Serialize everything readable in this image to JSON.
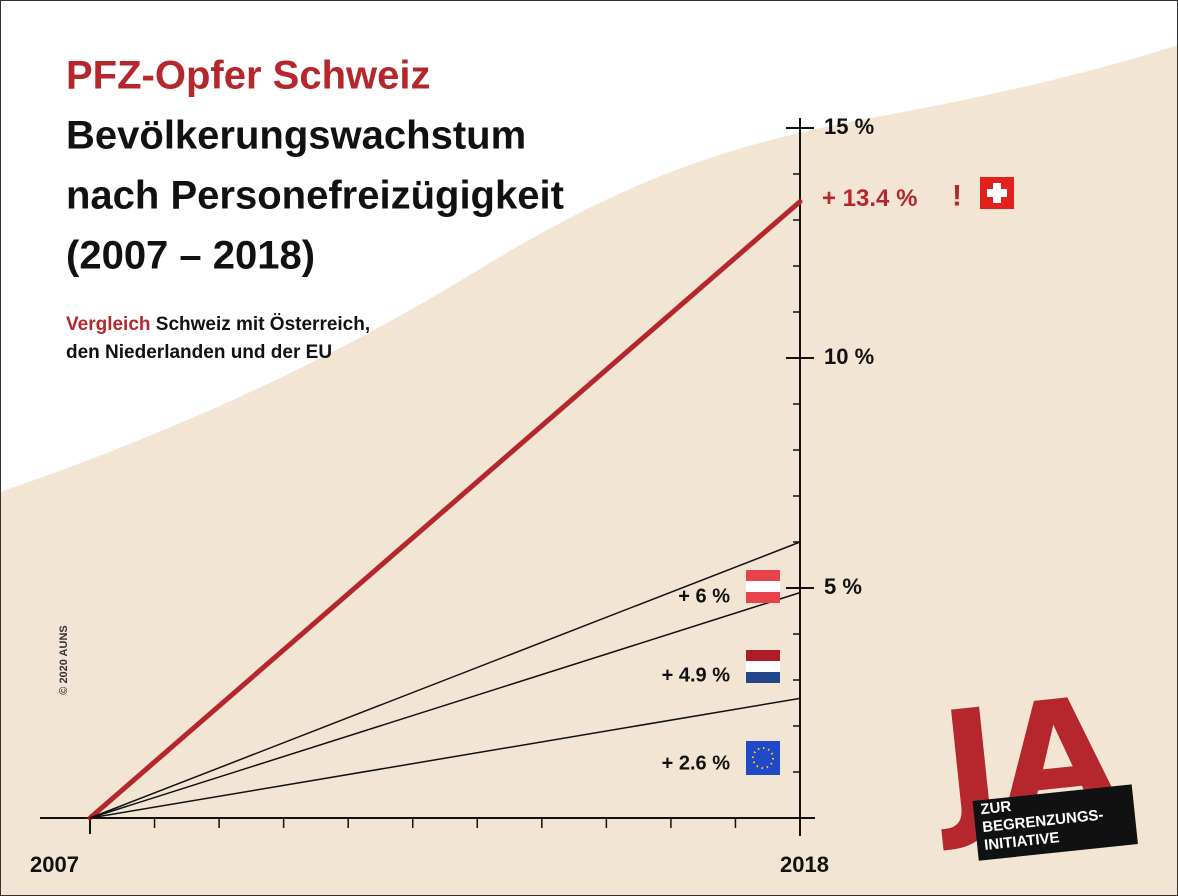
{
  "chart_data": {
    "type": "line",
    "title": "PFZ-Opfer Schweiz",
    "subtitle": [
      "Bevölkerungswachstum",
      "nach Personefreizügigkeit",
      "(2007 – 2018)"
    ],
    "description": {
      "highlight": "Vergleich",
      "lines": [
        "Schweiz mit Österreich,",
        "den Niederlanden und der EU"
      ]
    },
    "x": [
      2007,
      2018
    ],
    "xlim": [
      2007,
      2018
    ],
    "xticks": [
      2007,
      2018
    ],
    "xminor_ticks": [
      2008,
      2009,
      2010,
      2011,
      2012,
      2013,
      2014,
      2015,
      2016,
      2017
    ],
    "ylim": [
      0,
      15
    ],
    "yticks": [
      {
        "value": 5,
        "label": "5 %"
      },
      {
        "value": 10,
        "label": "10 %"
      },
      {
        "value": 15,
        "label": "15 %"
      }
    ],
    "yminor_ticks": [
      1,
      2,
      3,
      4,
      6,
      7,
      8,
      9,
      11,
      12,
      13,
      14
    ],
    "series": [
      {
        "color": "#b5272d",
        "values": [
          0,
          13.4
        ],
        "value_labels": [
          null,
          "+ 13.4 %"
        ],
        "emphasis": "!"
      },
      {
        "color": "#111111",
        "values": [
          0,
          6
        ],
        "value_labels": [
          null,
          "+ 6 %"
        ]
      },
      {
        "color": "#111111",
        "values": [
          0,
          4.9
        ],
        "value_labels": [
          null,
          "+ 4.9 %"
        ]
      },
      {
        "color": "#111111",
        "values": [
          0,
          2.6
        ],
        "value_labels": [
          null,
          "+ 2.6 %"
        ]
      }
    ],
    "copyright": "© 2020 AUNS",
    "logo": {
      "big": "JA",
      "lines": [
        "ZUR",
        "BEGRENZUNGS-",
        "INITIATIVE"
      ]
    }
  }
}
